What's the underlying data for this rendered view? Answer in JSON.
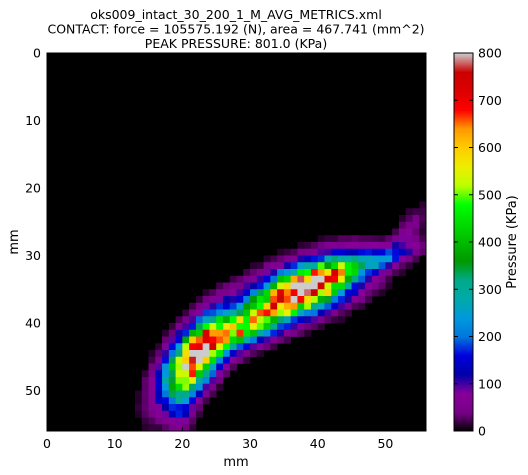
{
  "chart_data": {
    "type": "heatmap",
    "title_lines": [
      "oks009_intact_30_200_1_M_AVG_METRICS.xml",
      "CONTACT: force = 105575.192 (N), area = 467.741 (mm^2)",
      "PEAK PRESSURE: 801.0 (KPa)"
    ],
    "xlabel": "mm",
    "ylabel": "mm",
    "xlim": [
      0,
      56
    ],
    "ylim": [
      56,
      0
    ],
    "xticks": [
      0,
      10,
      20,
      30,
      40,
      50
    ],
    "yticks": [
      0,
      10,
      20,
      30,
      40,
      50
    ],
    "colorbar": {
      "label": "Pressure (KPa)",
      "range": [
        0,
        800
      ],
      "ticks": [
        0,
        100,
        200,
        300,
        400,
        500,
        600,
        700,
        800
      ],
      "colormap": "nipy_spectral"
    },
    "peak_value": 801.0,
    "grid": false,
    "hotspots": [
      {
        "center_x": 38,
        "center_y": 35,
        "sigma_major": 5.5,
        "sigma_minor": 2.2,
        "angle_deg": -22,
        "peak": 801
      },
      {
        "center_x": 22,
        "center_y": 45,
        "sigma_major": 4.5,
        "sigma_minor": 2.0,
        "angle_deg": -55,
        "peak": 760
      },
      {
        "center_x": 29,
        "center_y": 41,
        "sigma_major": 4.0,
        "sigma_minor": 1.6,
        "angle_deg": -25,
        "peak": 460
      },
      {
        "center_x": 47,
        "center_y": 31,
        "sigma_major": 5.0,
        "sigma_minor": 1.0,
        "angle_deg": -15,
        "peak": 200
      },
      {
        "center_x": 20,
        "center_y": 52,
        "sigma_major": 3.0,
        "sigma_minor": 1.2,
        "angle_deg": -80,
        "peak": 110
      },
      {
        "center_x": 53,
        "center_y": 27,
        "sigma_major": 3.0,
        "sigma_minor": 1.0,
        "angle_deg": -60,
        "peak": 60
      }
    ]
  }
}
